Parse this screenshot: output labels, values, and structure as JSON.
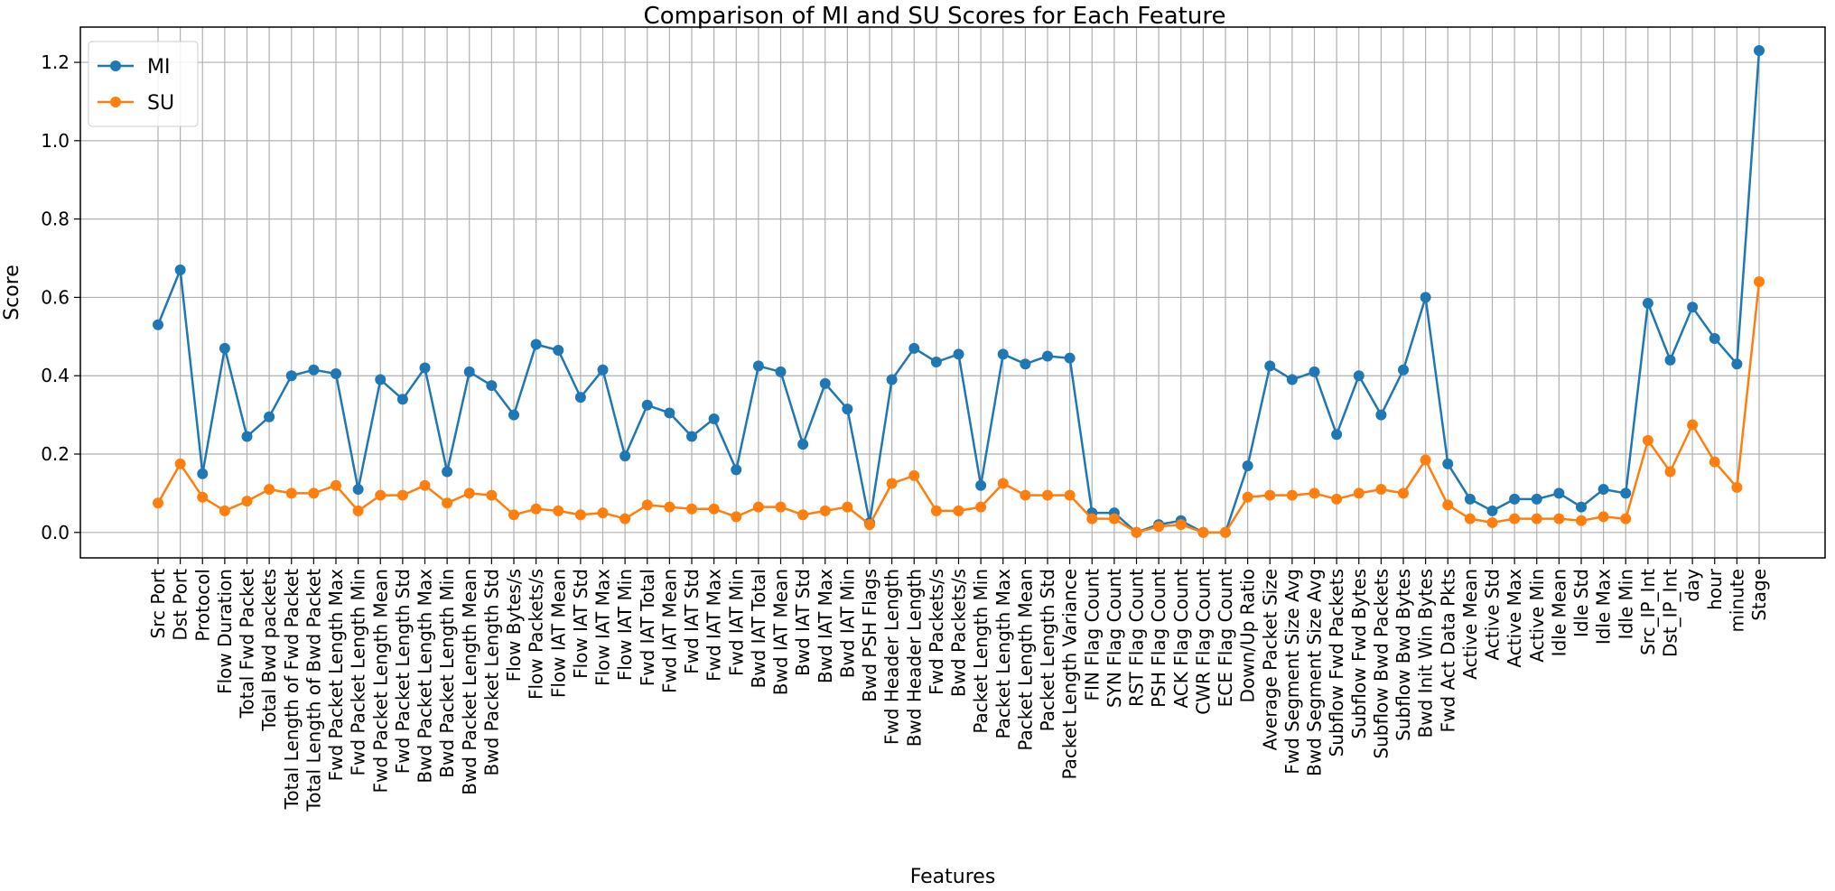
{
  "chart_data": {
    "type": "line",
    "title": "Comparison of MI and SU Scores for Each Feature",
    "xlabel": "Features",
    "ylabel": "Score",
    "ylim": [
      -0.065,
      1.29
    ],
    "yticks": [
      0.0,
      0.2,
      0.4,
      0.6,
      0.8,
      1.0,
      1.2
    ],
    "ytick_labels": [
      "0.0",
      "0.2",
      "0.4",
      "0.6",
      "0.8",
      "1.0",
      "1.2"
    ],
    "grid": true,
    "legend_position": "top-left",
    "categories": [
      "Src Port",
      "Dst Port",
      "Protocol",
      "Flow Duration",
      "Total Fwd Packet",
      "Total Bwd packets",
      "Total Length of Fwd Packet",
      "Total Length of Bwd Packet",
      "Fwd Packet Length Max",
      "Fwd Packet Length Min",
      "Fwd Packet Length Mean",
      "Fwd Packet Length Std",
      "Bwd Packet Length Max",
      "Bwd Packet Length Min",
      "Bwd Packet Length Mean",
      "Bwd Packet Length Std",
      "Flow Bytes/s",
      "Flow Packets/s",
      "Flow IAT Mean",
      "Flow IAT Std",
      "Flow IAT Max",
      "Flow IAT Min",
      "Fwd IAT Total",
      "Fwd IAT Mean",
      "Fwd IAT Std",
      "Fwd IAT Max",
      "Fwd IAT Min",
      "Bwd IAT Total",
      "Bwd IAT Mean",
      "Bwd IAT Std",
      "Bwd IAT Max",
      "Bwd IAT Min",
      "Bwd PSH Flags",
      "Fwd Header Length",
      "Bwd Header Length",
      "Fwd Packets/s",
      "Bwd Packets/s",
      "Packet Length Min",
      "Packet Length Max",
      "Packet Length Mean",
      "Packet Length Std",
      "Packet Length Variance",
      "FIN Flag Count",
      "SYN Flag Count",
      "RST Flag Count",
      "PSH Flag Count",
      "ACK Flag Count",
      "CWR Flag Count",
      "ECE Flag Count",
      "Down/Up Ratio",
      "Average Packet Size",
      "Fwd Segment Size Avg",
      "Bwd Segment Size Avg",
      "Subflow Fwd Packets",
      "Subflow Fwd Bytes",
      "Subflow Bwd Packets",
      "Subflow Bwd Bytes",
      "Bwd Init Win Bytes",
      "Fwd Act Data Pkts",
      "Active Mean",
      "Active Std",
      "Active Max",
      "Active Min",
      "Idle Mean",
      "Idle Std",
      "Idle Max",
      "Idle Min",
      "Src_IP_Int",
      "Dst_IP_Int",
      "day",
      "hour",
      "minute",
      "Stage"
    ],
    "series": [
      {
        "name": "MI",
        "color": "#1f77b4",
        "values": [
          0.53,
          0.67,
          0.15,
          0.47,
          0.245,
          0.295,
          0.4,
          0.415,
          0.405,
          0.11,
          0.39,
          0.34,
          0.42,
          0.155,
          0.41,
          0.375,
          0.3,
          0.48,
          0.465,
          0.345,
          0.415,
          0.195,
          0.325,
          0.305,
          0.245,
          0.29,
          0.16,
          0.425,
          0.41,
          0.225,
          0.38,
          0.315,
          0.025,
          0.39,
          0.47,
          0.435,
          0.455,
          0.12,
          0.455,
          0.43,
          0.45,
          0.445,
          0.05,
          0.05,
          0.0,
          0.02,
          0.03,
          0.0,
          0.0,
          0.17,
          0.425,
          0.39,
          0.41,
          0.25,
          0.4,
          0.3,
          0.415,
          0.6,
          0.175,
          0.085,
          0.055,
          0.085,
          0.085,
          0.1,
          0.065,
          0.11,
          0.1,
          0.585,
          0.44,
          0.575,
          0.495,
          0.43,
          1.23
        ]
      },
      {
        "name": "SU",
        "color": "#ff7f0e",
        "values": [
          0.075,
          0.175,
          0.09,
          0.055,
          0.08,
          0.11,
          0.1,
          0.1,
          0.12,
          0.055,
          0.095,
          0.095,
          0.12,
          0.075,
          0.1,
          0.095,
          0.045,
          0.06,
          0.055,
          0.045,
          0.05,
          0.035,
          0.07,
          0.065,
          0.06,
          0.06,
          0.04,
          0.065,
          0.065,
          0.045,
          0.055,
          0.065,
          0.02,
          0.125,
          0.145,
          0.055,
          0.055,
          0.065,
          0.125,
          0.095,
          0.095,
          0.095,
          0.035,
          0.035,
          0.0,
          0.015,
          0.02,
          0.0,
          0.0,
          0.09,
          0.095,
          0.095,
          0.1,
          0.085,
          0.1,
          0.11,
          0.1,
          0.185,
          0.07,
          0.035,
          0.025,
          0.035,
          0.035,
          0.035,
          0.03,
          0.04,
          0.035,
          0.235,
          0.155,
          0.275,
          0.18,
          0.115,
          0.64
        ]
      }
    ]
  }
}
